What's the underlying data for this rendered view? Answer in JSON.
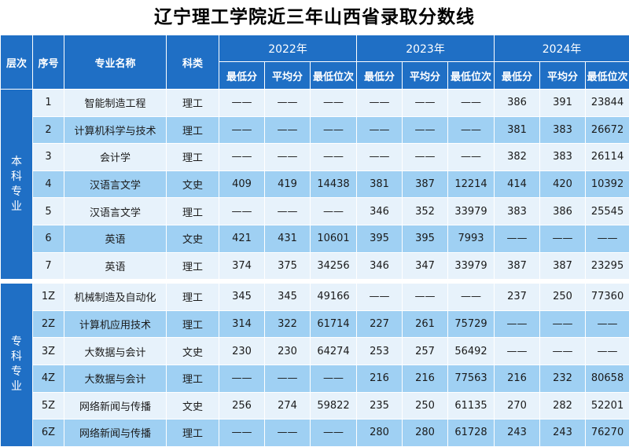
{
  "title": "辽宁理工学院近三年山西省录取分数线",
  "headers": {
    "level": "层次",
    "seq": "序号",
    "major": "专业名称",
    "category": "科类",
    "years": [
      "2022年",
      "2023年",
      "2024年"
    ],
    "sub": [
      "最低分",
      "平均分",
      "最低位次"
    ]
  },
  "groups": [
    {
      "level": "本科专业",
      "rows": [
        {
          "seq": "1",
          "major": "智能制造工程",
          "category": "理工",
          "vals": [
            "——",
            "——",
            "——",
            "——",
            "——",
            "——",
            "386",
            "391",
            "23844"
          ]
        },
        {
          "seq": "2",
          "major": "计算机科学与技术",
          "category": "理工",
          "vals": [
            "——",
            "——",
            "——",
            "——",
            "——",
            "——",
            "381",
            "383",
            "26672"
          ]
        },
        {
          "seq": "3",
          "major": "会计学",
          "category": "理工",
          "vals": [
            "——",
            "——",
            "——",
            "——",
            "——",
            "——",
            "382",
            "383",
            "26114"
          ]
        },
        {
          "seq": "4",
          "major": "汉语言文学",
          "category": "文史",
          "vals": [
            "409",
            "419",
            "14438",
            "381",
            "387",
            "12214",
            "414",
            "420",
            "10392"
          ]
        },
        {
          "seq": "5",
          "major": "汉语言文学",
          "category": "理工",
          "vals": [
            "——",
            "——",
            "——",
            "346",
            "352",
            "33979",
            "383",
            "386",
            "25545"
          ]
        },
        {
          "seq": "6",
          "major": "英语",
          "category": "文史",
          "vals": [
            "421",
            "431",
            "10601",
            "395",
            "395",
            "7993",
            "——",
            "——",
            "——"
          ]
        },
        {
          "seq": "7",
          "major": "英语",
          "category": "理工",
          "vals": [
            "374",
            "375",
            "34256",
            "346",
            "347",
            "33979",
            "387",
            "387",
            "23295"
          ]
        }
      ]
    },
    {
      "level": "专科专业",
      "rows": [
        {
          "seq": "1Z",
          "major": "机械制造及自动化",
          "category": "理工",
          "vals": [
            "345",
            "345",
            "49166",
            "——",
            "——",
            "——",
            "237",
            "250",
            "77360"
          ]
        },
        {
          "seq": "2Z",
          "major": "计算机应用技术",
          "category": "理工",
          "vals": [
            "314",
            "322",
            "61714",
            "227",
            "261",
            "75729",
            "——",
            "——",
            "——"
          ]
        },
        {
          "seq": "3Z",
          "major": "大数据与会计",
          "category": "文史",
          "vals": [
            "230",
            "230",
            "64274",
            "253",
            "257",
            "56492",
            "——",
            "——",
            "——"
          ]
        },
        {
          "seq": "4Z",
          "major": "大数据与会计",
          "category": "理工",
          "vals": [
            "——",
            "——",
            "——",
            "216",
            "216",
            "77563",
            "216",
            "232",
            "80658"
          ]
        },
        {
          "seq": "5Z",
          "major": "网络新闻与传播",
          "category": "文史",
          "vals": [
            "256",
            "274",
            "59822",
            "235",
            "250",
            "61135",
            "270",
            "282",
            "52201"
          ]
        },
        {
          "seq": "6Z",
          "major": "网络新闻与传播",
          "category": "理工",
          "vals": [
            "——",
            "——",
            "——",
            "280",
            "280",
            "61728",
            "243",
            "243",
            "76270"
          ]
        }
      ]
    }
  ]
}
